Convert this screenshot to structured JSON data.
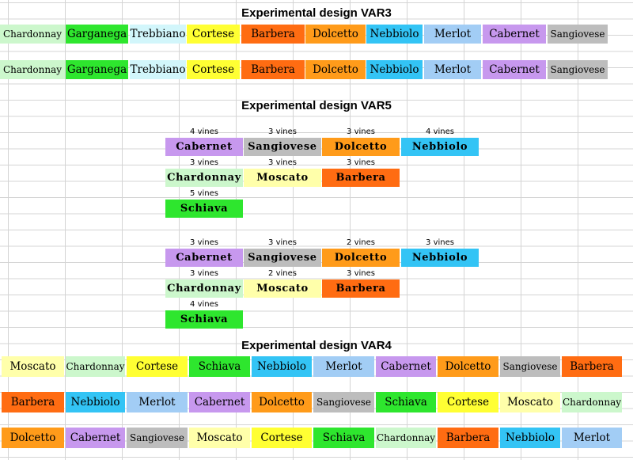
{
  "colors": {
    "Chardonnay": "#ccf7cc",
    "Garganega": "#2ee62e",
    "Trebbiano": "#d2f6fb",
    "Cortese": "#ffff33",
    "Barbera": "#ff6c12",
    "Dolcetto": "#ff9b1a",
    "Nebbiolo": "#33c4f5",
    "Merlot": "#a2cdf5",
    "Cabernet": "#c798ee",
    "Sangiovese": "#bdbdbd",
    "Moscato": "#ffffaa",
    "Schiava": "#2ee62e"
  },
  "var3": {
    "title": "Experimental design VAR3",
    "rows": [
      [
        "Chardonnay",
        "Garganega",
        "Trebbiano",
        "Cortese",
        "Barbera",
        "Dolcetto",
        "Nebbiolo",
        "Merlot",
        "Cabernet",
        "Sangiovese"
      ],
      [
        "Chardonnay",
        "Garganega",
        "Trebbiano",
        "Cortese",
        "Barbera",
        "Dolcetto",
        "Nebbiolo",
        "Merlot",
        "Cabernet",
        "Sangiovese"
      ]
    ]
  },
  "var5": {
    "title": "Experimental design VAR5",
    "blocks": [
      {
        "rows": [
          [
            {
              "name": "Cabernet",
              "vines": "4 vines"
            },
            {
              "name": "Sangiovese",
              "vines": "3 vines"
            },
            {
              "name": "Dolcetto",
              "vines": "3 vines"
            },
            {
              "name": "Nebbiolo",
              "vines": "4 vines"
            }
          ],
          [
            {
              "name": "Chardonnay",
              "vines": "3 vines"
            },
            {
              "name": "Moscato",
              "vines": "3 vines"
            },
            {
              "name": "Barbera",
              "vines": "3 vines"
            }
          ],
          [
            {
              "name": "Schiava",
              "vines": "5 vines"
            }
          ]
        ]
      },
      {
        "rows": [
          [
            {
              "name": "Cabernet",
              "vines": "3 vines"
            },
            {
              "name": "Sangiovese",
              "vines": "3 vines"
            },
            {
              "name": "Dolcetto",
              "vines": "2 vines"
            },
            {
              "name": "Nebbiolo",
              "vines": "3 vines"
            }
          ],
          [
            {
              "name": "Chardonnay",
              "vines": "3 vines"
            },
            {
              "name": "Moscato",
              "vines": "2 vines"
            },
            {
              "name": "Barbera",
              "vines": "3 vines"
            }
          ],
          [
            {
              "name": "Schiava",
              "vines": "4 vines"
            }
          ]
        ]
      }
    ]
  },
  "var4": {
    "title": "Experimental design VAR4",
    "rows": [
      [
        "Moscato",
        "Chardonnay",
        "Cortese",
        "Schiava",
        "Nebbiolo",
        "Merlot",
        "Cabernet",
        "Dolcetto",
        "Sangiovese",
        "Barbera"
      ],
      [
        "Barbera",
        "Nebbiolo",
        "Merlot",
        "Cabernet",
        "Dolcetto",
        "Sangiovese",
        "Schiava",
        "Cortese",
        "Moscato",
        "Chardonnay"
      ],
      [
        "Dolcetto",
        "Cabernet",
        "Sangiovese",
        "Moscato",
        "Cortese",
        "Schiava",
        "Chardonnay",
        "Barbera",
        "Nebbiolo",
        "Merlot"
      ]
    ]
  }
}
